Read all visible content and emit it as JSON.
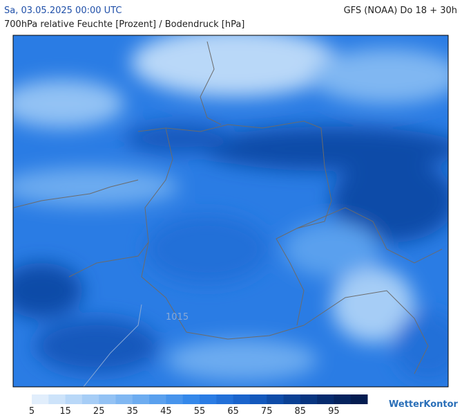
{
  "header": {
    "date": "Sa, 03.05.2025 00:00 UTC",
    "model": "GFS (NOAA) Do 18 + 30h",
    "subtitle": "700hPa relative Feuchte [Prozent] / Bodendruck [hPa]"
  },
  "map": {
    "isobar_labels": [
      "1015"
    ]
  },
  "legend": {
    "ticks": [
      5,
      15,
      25,
      35,
      45,
      55,
      65,
      75,
      85,
      95
    ],
    "colors": [
      "#e1eefc",
      "#cde3fa",
      "#b9d8f8",
      "#a6cdf6",
      "#93c2f4",
      "#80b7f2",
      "#6dacf0",
      "#5aa0ee",
      "#4794ec",
      "#3488ea",
      "#2a7ce4",
      "#2270d8",
      "#1a64cc",
      "#1358bc",
      "#0e4ca8",
      "#0a4094",
      "#083580",
      "#062b6e",
      "#05235e",
      "#041c50"
    ]
  },
  "logo": "WetterKontor"
}
